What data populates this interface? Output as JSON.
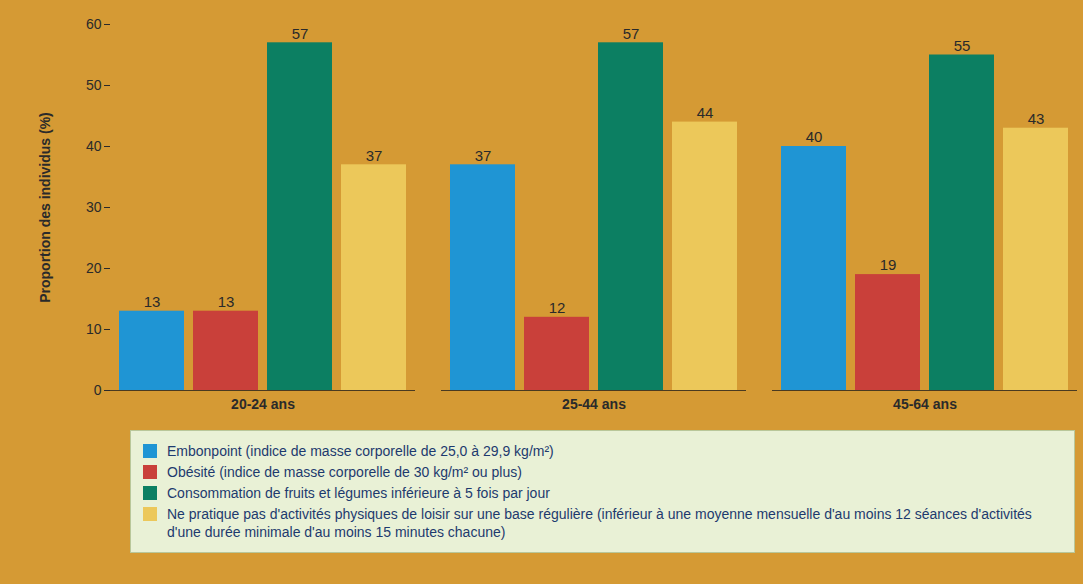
{
  "chart_data": {
    "type": "bar",
    "y_label": "Proportion des individus (%)",
    "categories": [
      "20-24 ans",
      "25-44 ans",
      "45-64 ans"
    ],
    "series": [
      {
        "name": "Embonpoint (indice de masse corporelle de 25,0 à 29,9 kg/m²)",
        "color": "#1f95d4",
        "values": [
          13,
          37,
          40
        ]
      },
      {
        "name": "Obésité (indice de masse corporelle de 30 kg/m² ou plus)",
        "color": "#c9403a",
        "values": [
          13,
          12,
          19
        ]
      },
      {
        "name": "Consommation de fruits et légumes inférieure à 5 fois par jour",
        "color": "#0c7f62",
        "values": [
          57,
          57,
          55
        ]
      },
      {
        "name": "Ne pratique pas d'activités physiques de loisir sur une base régulière (inférieur à une moyenne mensuelle d'au moins 12 séances d'activités d'une durée minimale d'au moins 15 minutes chacune)",
        "color": "#ecc85a",
        "values": [
          37,
          44,
          43
        ]
      }
    ],
    "ylim": [
      0,
      60
    ],
    "yticks": [
      0,
      10,
      20,
      30,
      40,
      50,
      60
    ],
    "grid": false,
    "data_labels": true,
    "legend": "bottom"
  }
}
